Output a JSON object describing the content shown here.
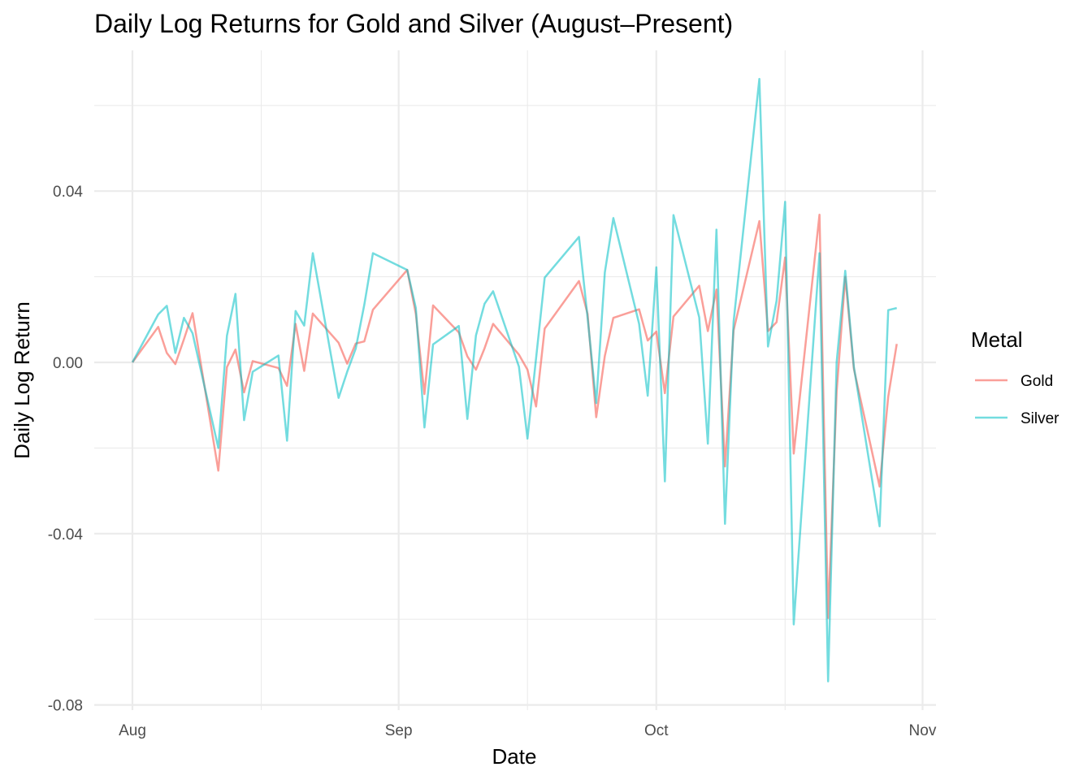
{
  "chart_data": {
    "type": "line",
    "title": "Daily Log Returns for Gold and Silver (August–Present)",
    "xlabel": "Date",
    "ylabel": "Daily Log Return",
    "x_ticks": [
      "Aug",
      "Sep",
      "Oct",
      "Nov"
    ],
    "y_ticks": [
      "-0.08",
      "-0.04",
      "0.00",
      "0.04"
    ],
    "ylim": [
      -0.08,
      0.065
    ],
    "grid": true,
    "legend": {
      "title": "Metal",
      "position": "right"
    },
    "series": [
      {
        "name": "Gold",
        "color": "#F8766D",
        "points": [
          [
            "2025-08-01",
            0.0
          ],
          [
            "2025-08-04",
            0.0083
          ],
          [
            "2025-08-05",
            0.0022
          ],
          [
            "2025-08-06",
            -0.0004
          ],
          [
            "2025-08-07",
            0.0054
          ],
          [
            "2025-08-08",
            0.0115
          ],
          [
            "2025-08-11",
            -0.0253
          ],
          [
            "2025-08-12",
            -0.0011
          ],
          [
            "2025-08-13",
            0.003
          ],
          [
            "2025-08-14",
            -0.007
          ],
          [
            "2025-08-15",
            0.0003
          ],
          [
            "2025-08-18",
            -0.0013
          ],
          [
            "2025-08-19",
            -0.0055
          ],
          [
            "2025-08-20",
            0.009
          ],
          [
            "2025-08-21",
            -0.002
          ],
          [
            "2025-08-22",
            0.0114
          ],
          [
            "2025-08-25",
            0.0046
          ],
          [
            "2025-08-26",
            -0.0003
          ],
          [
            "2025-08-27",
            0.0044
          ],
          [
            "2025-08-28",
            0.0049
          ],
          [
            "2025-08-29",
            0.0123
          ],
          [
            "2025-09-02",
            0.0216
          ],
          [
            "2025-09-03",
            0.0113
          ],
          [
            "2025-09-04",
            -0.0074
          ],
          [
            "2025-09-05",
            0.0133
          ],
          [
            "2025-09-08",
            0.007
          ],
          [
            "2025-09-09",
            0.0014
          ],
          [
            "2025-09-10",
            -0.0017
          ],
          [
            "2025-09-11",
            0.0033
          ],
          [
            "2025-09-12",
            0.009
          ],
          [
            "2025-09-15",
            0.0018
          ],
          [
            "2025-09-16",
            -0.0017
          ],
          [
            "2025-09-17",
            -0.0103
          ],
          [
            "2025-09-18",
            0.0079
          ],
          [
            "2025-09-22",
            0.019
          ],
          [
            "2025-09-23",
            0.0113
          ],
          [
            "2025-09-24",
            -0.0128
          ],
          [
            "2025-09-25",
            0.0015
          ],
          [
            "2025-09-26",
            0.0104
          ],
          [
            "2025-09-29",
            0.0124
          ],
          [
            "2025-09-30",
            0.0051
          ],
          [
            "2025-10-01",
            0.0072
          ],
          [
            "2025-10-02",
            -0.0072
          ],
          [
            "2025-10-03",
            0.0107
          ],
          [
            "2025-10-06",
            0.0179
          ],
          [
            "2025-10-07",
            0.0073
          ],
          [
            "2025-10-08",
            0.017
          ],
          [
            "2025-10-09",
            -0.0243
          ],
          [
            "2025-10-10",
            0.0075
          ],
          [
            "2025-10-13",
            0.033
          ],
          [
            "2025-10-14",
            0.0073
          ],
          [
            "2025-10-15",
            0.0094
          ],
          [
            "2025-10-16",
            0.0245
          ],
          [
            "2025-10-17",
            -0.0213
          ],
          [
            "2025-10-20",
            0.0345
          ],
          [
            "2025-10-21",
            -0.0597
          ],
          [
            "2025-10-22",
            -0.0069
          ],
          [
            "2025-10-23",
            0.02
          ],
          [
            "2025-10-24",
            -0.0015
          ],
          [
            "2025-10-27",
            -0.029
          ],
          [
            "2025-10-28",
            -0.008
          ],
          [
            "2025-10-29",
            0.0043
          ]
        ]
      },
      {
        "name": "Silver",
        "color": "#00BFC4",
        "points": [
          [
            "2025-08-01",
            0.0
          ],
          [
            "2025-08-04",
            0.0112
          ],
          [
            "2025-08-05",
            0.0132
          ],
          [
            "2025-08-06",
            0.0022
          ],
          [
            "2025-08-07",
            0.0104
          ],
          [
            "2025-08-08",
            0.0068
          ],
          [
            "2025-08-11",
            -0.02
          ],
          [
            "2025-08-12",
            0.0062
          ],
          [
            "2025-08-13",
            0.016
          ],
          [
            "2025-08-14",
            -0.0135
          ],
          [
            "2025-08-15",
            -0.0022
          ],
          [
            "2025-08-18",
            0.0016
          ],
          [
            "2025-08-19",
            -0.0183
          ],
          [
            "2025-08-20",
            0.012
          ],
          [
            "2025-08-21",
            0.0086
          ],
          [
            "2025-08-22",
            0.0255
          ],
          [
            "2025-08-25",
            -0.0083
          ],
          [
            "2025-08-26",
            -0.0022
          ],
          [
            "2025-08-27",
            0.0032
          ],
          [
            "2025-08-28",
            0.0135
          ],
          [
            "2025-08-29",
            0.0255
          ],
          [
            "2025-09-02",
            0.0216
          ],
          [
            "2025-09-03",
            0.0127
          ],
          [
            "2025-09-04",
            -0.0152
          ],
          [
            "2025-09-05",
            0.0042
          ],
          [
            "2025-09-08",
            0.0085
          ],
          [
            "2025-09-09",
            -0.0132
          ],
          [
            "2025-09-10",
            0.0063
          ],
          [
            "2025-09-11",
            0.0137
          ],
          [
            "2025-09-12",
            0.0166
          ],
          [
            "2025-09-15",
            -0.001
          ],
          [
            "2025-09-16",
            -0.0178
          ],
          [
            "2025-09-18",
            0.0198
          ],
          [
            "2025-09-22",
            0.0293
          ],
          [
            "2025-09-23",
            0.0104
          ],
          [
            "2025-09-24",
            -0.0095
          ],
          [
            "2025-09-25",
            0.021
          ],
          [
            "2025-09-26",
            0.0337
          ],
          [
            "2025-09-29",
            0.009
          ],
          [
            "2025-09-30",
            -0.0078
          ],
          [
            "2025-10-01",
            0.0222
          ],
          [
            "2025-10-02",
            -0.0278
          ],
          [
            "2025-10-03",
            0.0344
          ],
          [
            "2025-10-06",
            0.0105
          ],
          [
            "2025-10-07",
            -0.019
          ],
          [
            "2025-10-08",
            0.031
          ],
          [
            "2025-10-09",
            -0.0377
          ],
          [
            "2025-10-10",
            0.0095
          ],
          [
            "2025-10-13",
            0.0662
          ],
          [
            "2025-10-14",
            0.0037
          ],
          [
            "2025-10-15",
            0.0144
          ],
          [
            "2025-10-16",
            0.0375
          ],
          [
            "2025-10-17",
            -0.0612
          ],
          [
            "2025-10-20",
            0.0255
          ],
          [
            "2025-10-21",
            -0.0745
          ],
          [
            "2025-10-22",
            0.0
          ],
          [
            "2025-10-23",
            0.0214
          ],
          [
            "2025-10-24",
            -0.001
          ],
          [
            "2025-10-27",
            -0.0383
          ],
          [
            "2025-10-28",
            0.0122
          ],
          [
            "2025-10-29",
            0.0127
          ]
        ]
      }
    ]
  }
}
